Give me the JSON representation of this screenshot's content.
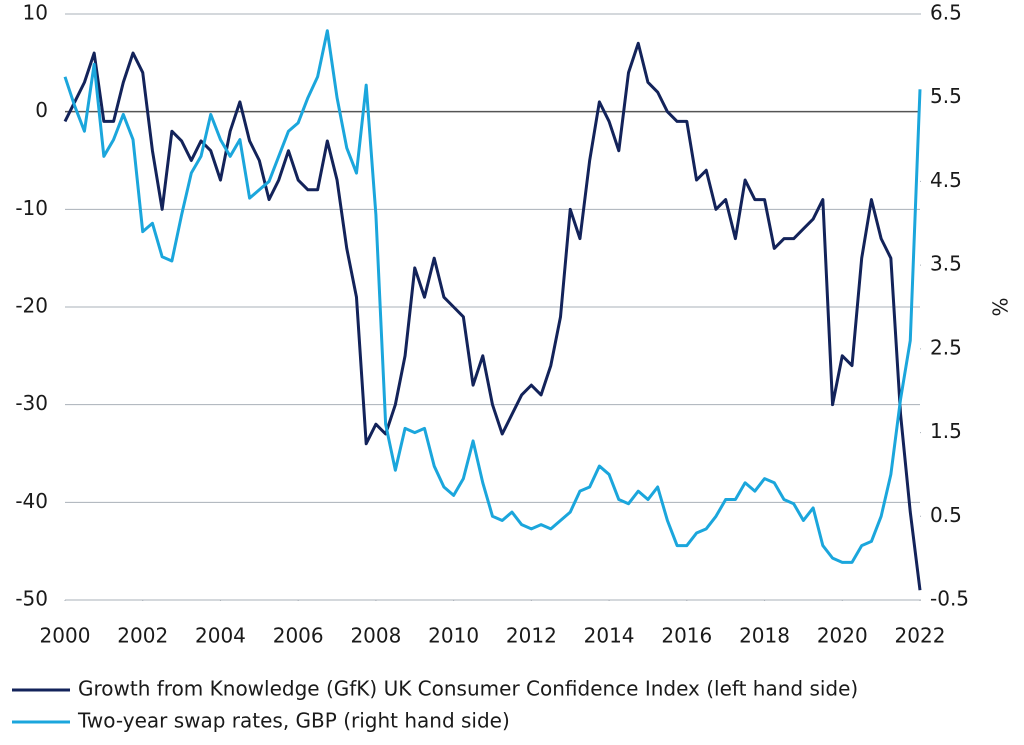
{
  "chart_data": {
    "type": "line",
    "x": [
      2000,
      2000.25,
      2000.5,
      2000.75,
      2001,
      2001.25,
      2001.5,
      2001.75,
      2002,
      2002.25,
      2002.5,
      2002.75,
      2003,
      2003.25,
      2003.5,
      2003.75,
      2004,
      2004.25,
      2004.5,
      2004.75,
      2005,
      2005.25,
      2005.5,
      2005.75,
      2006,
      2006.25,
      2006.5,
      2006.75,
      2007,
      2007.25,
      2007.5,
      2007.75,
      2008,
      2008.25,
      2008.5,
      2008.75,
      2009,
      2009.25,
      2009.5,
      2009.75,
      2010,
      2010.25,
      2010.5,
      2010.75,
      2011,
      2011.25,
      2011.5,
      2011.75,
      2012,
      2012.25,
      2012.5,
      2012.75,
      2013,
      2013.25,
      2013.5,
      2013.75,
      2014,
      2014.25,
      2014.5,
      2014.75,
      2015,
      2015.25,
      2015.5,
      2015.75,
      2016,
      2016.25,
      2016.5,
      2016.75,
      2017,
      2017.25,
      2017.5,
      2017.75,
      2018,
      2018.25,
      2018.5,
      2018.75,
      2019,
      2019.25,
      2019.5,
      2019.75,
      2020,
      2020.25,
      2020.5,
      2020.75,
      2021,
      2021.25,
      2021.5,
      2021.75,
      2022
    ],
    "series": [
      {
        "name": "Growth from Knowledge (GfK) UK Consumer Confidence Index (left hand side)",
        "color": "#13235a",
        "axis": "y",
        "values": [
          -1,
          1,
          3,
          6,
          -1,
          -1,
          3,
          6,
          4,
          -4,
          -10,
          -2,
          -3,
          -5,
          -3,
          -4,
          -7,
          -2,
          1,
          -3,
          -5,
          -9,
          -7,
          -4,
          -7,
          -8,
          -8,
          -3,
          -7,
          -14,
          -19,
          -34,
          -32,
          -33,
          -30,
          -25,
          -16,
          -19,
          -15,
          -19,
          -20,
          -21,
          -28,
          -25,
          -30,
          -33,
          -31,
          -29,
          -28,
          -29,
          -26,
          -21,
          -10,
          -13,
          -5,
          1,
          -1,
          -4,
          4,
          7,
          3,
          2,
          0,
          -1,
          -1,
          -7,
          -6,
          -10,
          -9,
          -13,
          -7,
          -9,
          -9,
          -14,
          -13,
          -13,
          -12,
          -11,
          -9,
          -30,
          -25,
          -26,
          -15,
          -9,
          -13,
          -15,
          -31,
          -41,
          -49
        ]
      },
      {
        "name": "Two-year swap rates, GBP (right hand side)",
        "color": "#1ba6dc",
        "axis": "y2",
        "values": [
          5.75,
          5.4,
          5.1,
          5.9,
          4.8,
          5.0,
          5.3,
          5.0,
          3.9,
          4.0,
          3.6,
          3.55,
          4.1,
          4.6,
          4.8,
          5.3,
          5.0,
          4.8,
          5.0,
          4.3,
          4.4,
          4.5,
          4.8,
          5.1,
          5.2,
          5.5,
          5.75,
          6.3,
          5.5,
          4.9,
          4.6,
          5.65,
          4.1,
          1.6,
          1.05,
          1.55,
          1.5,
          1.55,
          1.1,
          0.85,
          0.75,
          0.95,
          1.4,
          0.9,
          0.5,
          0.45,
          0.55,
          0.4,
          0.35,
          0.4,
          0.35,
          0.45,
          0.55,
          0.8,
          0.85,
          1.1,
          1.0,
          0.7,
          0.65,
          0.8,
          0.7,
          0.85,
          0.45,
          0.15,
          0.15,
          0.3,
          0.35,
          0.5,
          0.7,
          0.7,
          0.9,
          0.8,
          0.95,
          0.9,
          0.7,
          0.65,
          0.45,
          0.6,
          0.15,
          0.0,
          -0.05,
          -0.05,
          0.15,
          0.2,
          0.5,
          1.0,
          1.9,
          2.6,
          5.6
        ]
      }
    ],
    "xlim": [
      2000,
      2022
    ],
    "xticks": [
      2000,
      2002,
      2004,
      2006,
      2008,
      2010,
      2012,
      2014,
      2016,
      2018,
      2020,
      2022
    ],
    "ylim": [
      -50,
      10
    ],
    "yticks": [
      10,
      0,
      -10,
      -20,
      -30,
      -40,
      -50
    ],
    "y2lim": [
      -0.5,
      6.5
    ],
    "y2ticks": [
      6.5,
      5.5,
      4.5,
      3.5,
      2.5,
      1.5,
      0.5,
      -0.5
    ],
    "y2label": "%",
    "grid": true
  }
}
